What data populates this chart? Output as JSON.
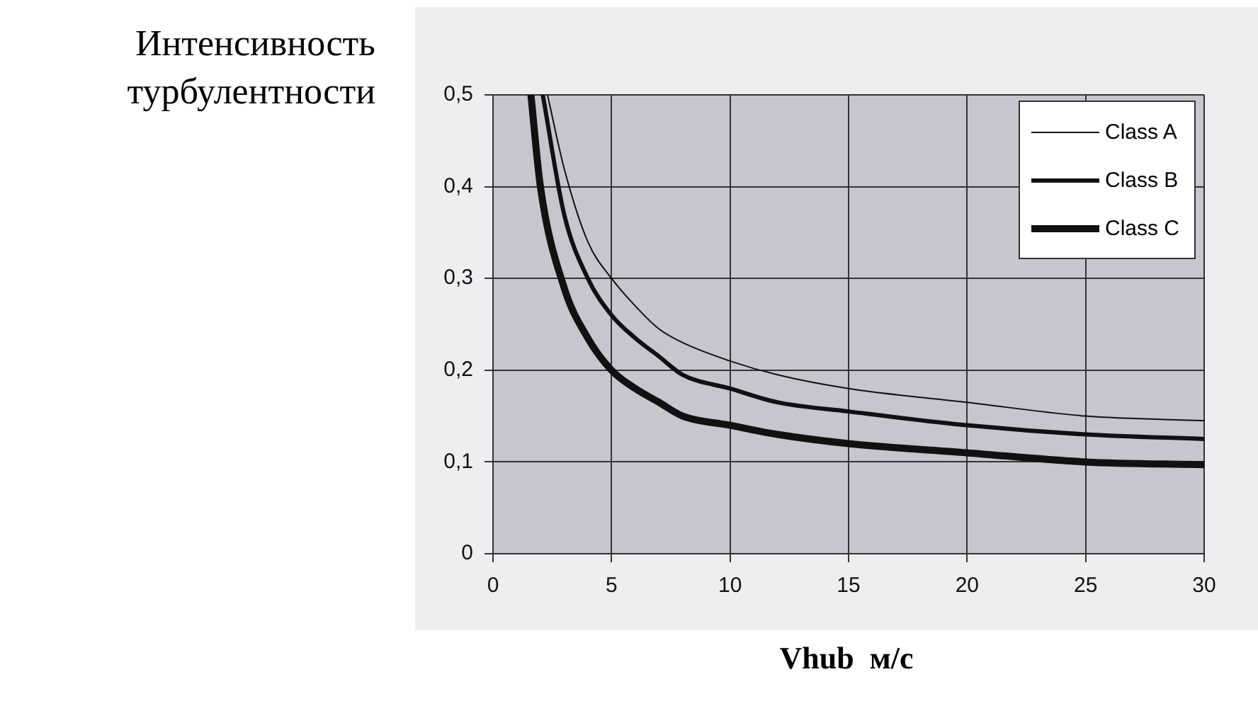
{
  "chart_data": {
    "type": "line",
    "xlabel": "Vhub  м/с",
    "ylabel": "Интенсивность\nтурбулентности",
    "xlim": [
      0,
      30
    ],
    "xticks": [
      0,
      5,
      10,
      15,
      20,
      25,
      30
    ],
    "ylim": [
      0,
      0.5
    ],
    "yticks": [
      {
        "value": 0,
        "label": "0"
      },
      {
        "value": 0.1,
        "label": "0,1"
      },
      {
        "value": 0.2,
        "label": "0,2"
      },
      {
        "value": 0.3,
        "label": "0,3"
      },
      {
        "value": 0.4,
        "label": "0,4"
      },
      {
        "value": 0.5,
        "label": "0,5"
      }
    ],
    "grid": true,
    "legend": "top right",
    "marker": "none",
    "line_style": "solid",
    "series": [
      {
        "name": "Class A",
        "color": "#111111",
        "x": [
          2.3,
          3,
          4,
          5,
          6,
          7,
          8,
          10,
          12,
          15,
          20,
          25,
          30
        ],
        "values": [
          0.5,
          0.42,
          0.34,
          0.3,
          0.27,
          0.245,
          0.23,
          0.21,
          0.195,
          0.18,
          0.165,
          0.15,
          0.145
        ]
      },
      {
        "name": "Class B",
        "color": "#111111",
        "x": [
          2.1,
          3,
          4,
          5,
          6,
          7,
          8,
          10,
          12,
          15,
          20,
          25,
          30
        ],
        "values": [
          0.5,
          0.37,
          0.3,
          0.26,
          0.235,
          0.215,
          0.195,
          0.18,
          0.165,
          0.155,
          0.14,
          0.13,
          0.125
        ]
      },
      {
        "name": "Class C",
        "color": "#111111",
        "x": [
          1.6,
          2,
          3,
          4,
          5,
          6,
          7,
          8,
          10,
          12,
          15,
          20,
          25,
          30
        ],
        "values": [
          0.5,
          0.4,
          0.29,
          0.235,
          0.2,
          0.18,
          0.165,
          0.15,
          0.14,
          0.13,
          0.12,
          0.11,
          0.1,
          0.097
        ]
      }
    ]
  }
}
